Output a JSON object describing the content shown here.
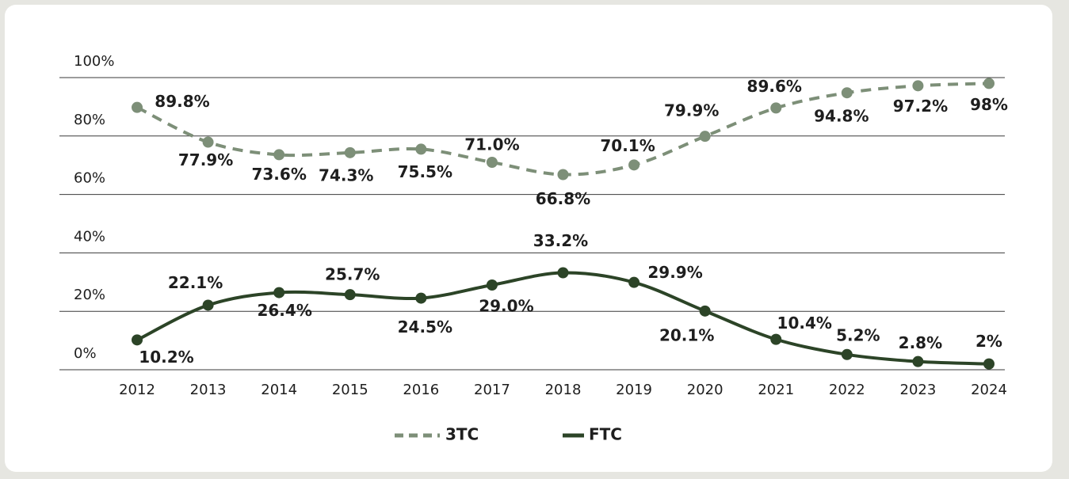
{
  "chart_data": {
    "type": "line",
    "categories": [
      "2012",
      "2013",
      "2014",
      "2015",
      "2016",
      "2017",
      "2018",
      "2019",
      "2020",
      "2021",
      "2022",
      "2023",
      "2024"
    ],
    "series": [
      {
        "name": "3TC",
        "color": "#7d8f78",
        "dashed": true,
        "values": [
          89.8,
          77.9,
          73.6,
          74.3,
          75.5,
          71.0,
          66.8,
          70.1,
          79.9,
          89.6,
          94.8,
          97.2,
          98
        ],
        "value_labels": [
          "89.8%",
          "77.9%",
          "73.6%",
          "74.3%",
          "75.5%",
          "71.0%",
          "66.8%",
          "70.1%",
          "79.9%",
          "89.6%",
          "94.8%",
          "97.2%",
          "98%"
        ]
      },
      {
        "name": "FTC",
        "color": "#2c4427",
        "dashed": false,
        "values": [
          10.2,
          22.1,
          26.4,
          25.7,
          24.5,
          29.0,
          33.2,
          29.9,
          20.1,
          10.4,
          5.2,
          2.8,
          2
        ],
        "value_labels": [
          "10.2%",
          "22.1%",
          "26.4%",
          "25.7%",
          "24.5%",
          "29.0%",
          "33.2%",
          "29.9%",
          "20.1%",
          "10.4%",
          "5.2%",
          "2.8%",
          "2%"
        ]
      }
    ],
    "ylim": [
      0,
      100
    ],
    "yticks": [
      {
        "value": 0,
        "label": "0%"
      },
      {
        "value": 20,
        "label": "20%"
      },
      {
        "value": 40,
        "label": "40%"
      },
      {
        "value": 60,
        "label": "60%"
      },
      {
        "value": 80,
        "label": "80%"
      },
      {
        "value": 100,
        "label": "100%"
      }
    ],
    "grid": true,
    "legend": "bottom"
  }
}
